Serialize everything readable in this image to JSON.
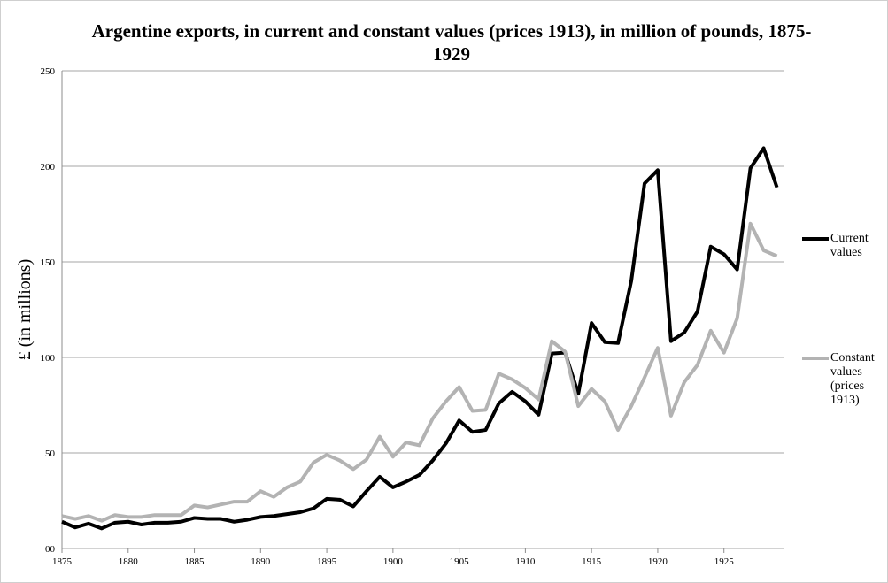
{
  "chart_data": {
    "type": "line",
    "title": "Argentine exports, in current and constant values (prices 1913), in million of pounds, 1875-1929",
    "y_label": "£ (in millions)",
    "x": [
      1875,
      1876,
      1877,
      1878,
      1879,
      1880,
      1881,
      1882,
      1883,
      1884,
      1885,
      1886,
      1887,
      1888,
      1889,
      1890,
      1891,
      1892,
      1893,
      1894,
      1895,
      1896,
      1897,
      1898,
      1899,
      1900,
      1901,
      1902,
      1903,
      1904,
      1905,
      1906,
      1907,
      1908,
      1909,
      1910,
      1911,
      1912,
      1913,
      1914,
      1915,
      1916,
      1917,
      1918,
      1919,
      1920,
      1921,
      1922,
      1923,
      1924,
      1925,
      1926,
      1927,
      1928,
      1929
    ],
    "series": [
      {
        "name": "Current values",
        "color": "#000000",
        "values": [
          14,
          11,
          13,
          10.5,
          13.5,
          14,
          12.5,
          13.5,
          13.5,
          14,
          16,
          15.5,
          15.5,
          14,
          15,
          16.5,
          17,
          18,
          19,
          21,
          26,
          25.5,
          22,
          30,
          37.5,
          32,
          35,
          38.5,
          46,
          55,
          67,
          61,
          62,
          76,
          82,
          77,
          70,
          102,
          102.5,
          81,
          118,
          108,
          107.5,
          140,
          191,
          198,
          108.5,
          113,
          124,
          158,
          154,
          146,
          199,
          209.5,
          189
        ]
      },
      {
        "name": "Constant values (prices 1913)",
        "color": "#b3b3b3",
        "values": [
          17,
          15.5,
          17,
          14.5,
          17.5,
          16.5,
          16.5,
          17.5,
          17.5,
          17.5,
          22.5,
          21.5,
          23,
          24.5,
          24.5,
          30,
          27,
          32,
          35,
          45,
          49,
          46,
          41.5,
          46.5,
          58.5,
          48,
          55.5,
          54,
          68,
          77,
          84.5,
          72,
          72.5,
          91.5,
          88.5,
          84,
          78,
          108.5,
          103,
          74.5,
          83.5,
          77,
          62,
          74.5,
          89.5,
          105,
          69.5,
          87,
          96,
          114,
          102.5,
          120.5,
          170,
          156,
          153
        ]
      }
    ],
    "xlim": [
      1875,
      1929.5
    ],
    "xticks": [
      1875,
      1880,
      1885,
      1890,
      1895,
      1900,
      1905,
      1910,
      1915,
      1920,
      1925
    ],
    "ylim": [
      0,
      250
    ],
    "yticks": [
      {
        "value": 0,
        "label": "00"
      },
      50,
      100,
      150,
      200,
      250
    ],
    "grid": true,
    "legend": "right"
  }
}
